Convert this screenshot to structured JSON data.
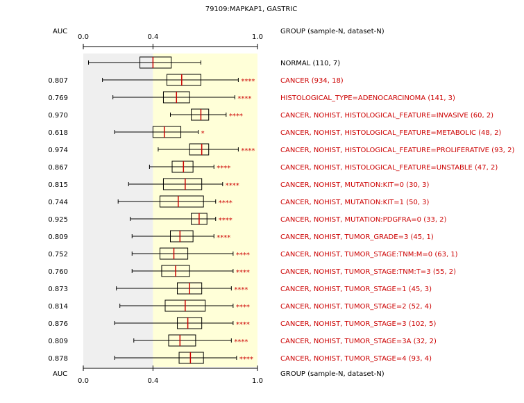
{
  "chart_data": {
    "type": "boxplot",
    "title": "79109:MAPKAP1, GASTRIC",
    "auc_header": "AUC",
    "group_header": "GROUP (sample-N, dataset-N)",
    "axis": {
      "xlim": [
        0,
        1
      ],
      "ticks": [
        0,
        0.4,
        1
      ],
      "tick_labels": [
        "0.0",
        "0.4",
        "1.0"
      ],
      "shaded_below": 0.4
    },
    "colors": {
      "normal_text": "#000000",
      "cancer_text": "#cc0000",
      "median": "#cc0000",
      "shade_low": "#efefef",
      "shade_high": "#ffffd8"
    },
    "rows": [
      {
        "auc": "",
        "label": "NORMAL (110, 7)",
        "type": "normal",
        "sig": "",
        "box": [
          0.03,
          0.325,
          0.4,
          0.505,
          0.675
        ]
      },
      {
        "auc": "0.807",
        "label": "CANCER (934, 18)",
        "type": "cancer",
        "sig": "****",
        "box": [
          0.11,
          0.48,
          0.565,
          0.675,
          0.89
        ]
      },
      {
        "auc": "0.769",
        "label": "HISTOLOGICAL_TYPE=ADENOCARCINOMA (141, 3)",
        "type": "cancer",
        "sig": "****",
        "box": [
          0.17,
          0.46,
          0.535,
          0.61,
          0.87
        ]
      },
      {
        "auc": "0.970",
        "label": "CANCER, NOHIST, HISTOLOGICAL_FEATURE=INVASIVE (60, 2)",
        "type": "cancer",
        "sig": "****",
        "box": [
          0.5,
          0.62,
          0.675,
          0.72,
          0.82
        ]
      },
      {
        "auc": "0.618",
        "label": "CANCER, NOHIST, HISTOLOGICAL_FEATURE=METABOLIC (48, 2)",
        "type": "cancer",
        "sig": "*",
        "box": [
          0.18,
          0.4,
          0.465,
          0.56,
          0.66
        ]
      },
      {
        "auc": "0.974",
        "label": "CANCER, NOHIST, HISTOLOGICAL_FEATURE=PROLIFERATIVE (93, 2)",
        "type": "cancer",
        "sig": "****",
        "box": [
          0.43,
          0.61,
          0.68,
          0.72,
          0.89
        ]
      },
      {
        "auc": "0.867",
        "label": "CANCER, NOHIST, HISTOLOGICAL_FEATURE=UNSTABLE (47, 2)",
        "type": "cancer",
        "sig": "****",
        "box": [
          0.38,
          0.51,
          0.575,
          0.63,
          0.75
        ]
      },
      {
        "auc": "0.815",
        "label": "CANCER, NOHIST, MUTATION:KIT=0 (30, 3)",
        "type": "cancer",
        "sig": "****",
        "box": [
          0.26,
          0.46,
          0.585,
          0.68,
          0.8
        ]
      },
      {
        "auc": "0.744",
        "label": "CANCER, NOHIST, MUTATION:KIT=1 (50, 3)",
        "type": "cancer",
        "sig": "****",
        "box": [
          0.2,
          0.44,
          0.545,
          0.69,
          0.76
        ]
      },
      {
        "auc": "0.925",
        "label": "CANCER, NOHIST, MUTATION:PDGFRA=0 (33, 2)",
        "type": "cancer",
        "sig": "****",
        "box": [
          0.27,
          0.62,
          0.665,
          0.71,
          0.76
        ]
      },
      {
        "auc": "0.809",
        "label": "CANCER, NOHIST, TUMOR_GRADE=3 (45, 1)",
        "type": "cancer",
        "sig": "****",
        "box": [
          0.28,
          0.5,
          0.555,
          0.63,
          0.75
        ]
      },
      {
        "auc": "0.752",
        "label": "CANCER, NOHIST, TUMOR_STAGE:TNM:M=0 (63, 1)",
        "type": "cancer",
        "sig": "****",
        "box": [
          0.28,
          0.44,
          0.52,
          0.6,
          0.86
        ]
      },
      {
        "auc": "0.760",
        "label": "CANCER, NOHIST, TUMOR_STAGE:TNM:T=3 (55, 2)",
        "type": "cancer",
        "sig": "****",
        "box": [
          0.28,
          0.45,
          0.53,
          0.61,
          0.86
        ]
      },
      {
        "auc": "0.873",
        "label": "CANCER, NOHIST, TUMOR_STAGE=1 (45, 3)",
        "type": "cancer",
        "sig": "****",
        "box": [
          0.19,
          0.54,
          0.61,
          0.68,
          0.85
        ]
      },
      {
        "auc": "0.814",
        "label": "CANCER, NOHIST, TUMOR_STAGE=2 (52, 4)",
        "type": "cancer",
        "sig": "****",
        "box": [
          0.21,
          0.47,
          0.585,
          0.7,
          0.86
        ]
      },
      {
        "auc": "0.876",
        "label": "CANCER, NOHIST, TUMOR_STAGE=3 (102, 5)",
        "type": "cancer",
        "sig": "****",
        "box": [
          0.18,
          0.54,
          0.6,
          0.68,
          0.86
        ]
      },
      {
        "auc": "0.809",
        "label": "CANCER, NOHIST, TUMOR_STAGE=3A (32, 2)",
        "type": "cancer",
        "sig": "****",
        "box": [
          0.29,
          0.49,
          0.555,
          0.645,
          0.85
        ]
      },
      {
        "auc": "0.878",
        "label": "CANCER, NOHIST, TUMOR_STAGE=4 (93, 4)",
        "type": "cancer",
        "sig": "****",
        "box": [
          0.18,
          0.55,
          0.615,
          0.69,
          0.88
        ]
      }
    ]
  }
}
